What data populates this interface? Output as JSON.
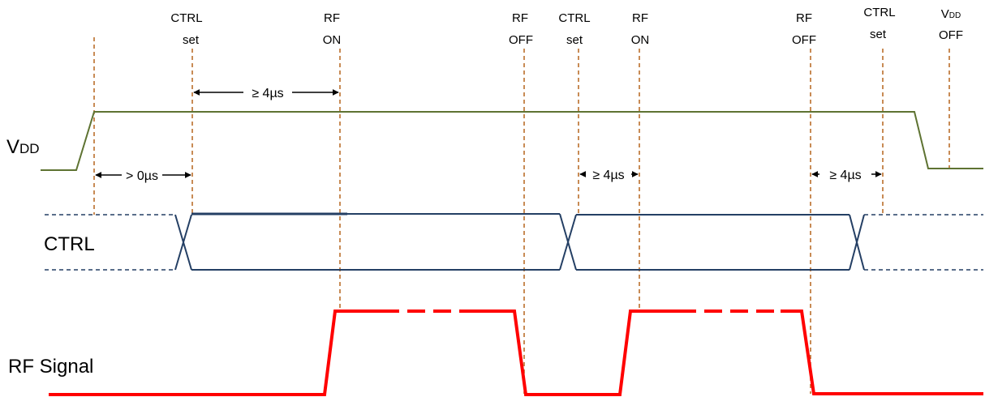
{
  "diagram": {
    "signals": {
      "vdd": {
        "main": "V",
        "sub": "DD"
      },
      "ctrl": "CTRL",
      "rf": "RF Signal"
    },
    "events": [
      {
        "line1": "CTRL",
        "line2": "set"
      },
      {
        "line1": "RF",
        "line2": "ON"
      },
      {
        "line1": "RF",
        "line2": "OFF"
      },
      {
        "line1": "CTRL",
        "line2": "set"
      },
      {
        "line1": "RF",
        "line2": "ON"
      },
      {
        "line1": "RF",
        "line2": "OFF"
      },
      {
        "line1": "CTRL",
        "line2": "set"
      },
      {
        "line1_main": "V",
        "line1_sub": "DD",
        "line2": "OFF"
      }
    ],
    "intervals": [
      {
        "text": "≥ 4µs"
      },
      {
        "text": "> 0µs"
      },
      {
        "text": "≥ 4µs"
      },
      {
        "text": "≥ 4µs"
      }
    ],
    "colors": {
      "vdd": "#5e7332",
      "ctrl": "#243f64",
      "rf": "#ff0000",
      "marker": "#b5651d",
      "text": "#000000"
    }
  }
}
